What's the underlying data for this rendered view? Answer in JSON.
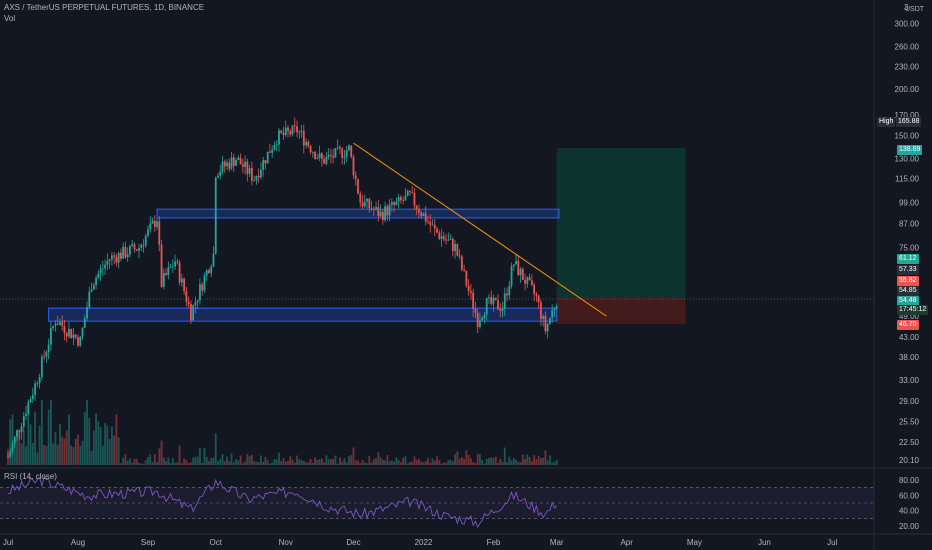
{
  "header": {
    "title": "AXS / TetherUS PERPETUAL FUTURES, 1D, BINANCE",
    "vol_label": "Vol",
    "rsi_label": "RSI (14, close)",
    "currency": "USDT",
    "top_scale_value": "3"
  },
  "price_axis": {
    "ticks": [
      "300.00",
      "260.00",
      "230.00",
      "200.00",
      "170.00",
      "150.00",
      "130.00",
      "115.00",
      "99.00",
      "87.00",
      "75.00",
      "65.00",
      "49.00",
      "43.00",
      "38.00",
      "33.00",
      "29.00",
      "25.50",
      "22.50",
      "20.10"
    ],
    "high_label": "High",
    "high_value": "165.88",
    "tags": [
      {
        "id": "target",
        "text": "138.69",
        "color": "#26a69a"
      },
      {
        "id": "t1",
        "text": "61.12",
        "color": "#26a69a"
      },
      {
        "id": "t2",
        "text": "57.33",
        "color": "#2a2e39"
      },
      {
        "id": "t3",
        "text": "55.82",
        "color": "#ef5350"
      },
      {
        "id": "t4",
        "text": "54.85",
        "color": "#2a2e39"
      },
      {
        "id": "last",
        "text": "54.48",
        "color": "#26a69a"
      },
      {
        "id": "countdown",
        "text": "17:45:12",
        "color": "#1e3a2f"
      },
      {
        "id": "stop",
        "text": "46.70",
        "color": "#ef5350"
      }
    ]
  },
  "rsi_axis": {
    "ticks": [
      "80.00",
      "60.00",
      "40.00",
      "20.00"
    ]
  },
  "time_axis": {
    "labels": [
      "Jul",
      "Aug",
      "Sep",
      "Oct",
      "Nov",
      "Dec",
      "2022",
      "Feb",
      "Mar",
      "Apr",
      "May",
      "Jun",
      "Jul"
    ]
  },
  "colors": {
    "up": "#26a69a",
    "down": "#ef5350",
    "zone": "#2962ff",
    "trendline": "#ff9800",
    "rsi": "#7e57c2",
    "profit_zone": "#0d3b33",
    "loss_zone": "#4a1c1c"
  },
  "chart_data": {
    "type": "candlestick",
    "symbol": "AXS / TetherUS PERPETUAL FUTURES",
    "interval": "1D",
    "exchange": "BINANCE",
    "y_scale": "log",
    "ylim": [
      19.5,
      330
    ],
    "period": [
      "2021-07-01",
      "2022-03-01"
    ],
    "price_path": [
      {
        "date": "2021-07-01",
        "close": 20.5
      },
      {
        "date": "2021-07-13",
        "close": 32
      },
      {
        "date": "2021-07-22",
        "close": 48
      },
      {
        "date": "2021-08-02",
        "close": 42
      },
      {
        "date": "2021-08-07",
        "close": 60
      },
      {
        "date": "2021-08-15",
        "close": 70
      },
      {
        "date": "2021-08-28",
        "close": 75
      },
      {
        "date": "2021-09-05",
        "close": 90
      },
      {
        "date": "2021-09-07",
        "close": 60
      },
      {
        "date": "2021-09-13",
        "close": 69
      },
      {
        "date": "2021-09-20",
        "close": 50
      },
      {
        "date": "2021-09-30",
        "close": 72
      },
      {
        "date": "2021-10-01",
        "close": 120
      },
      {
        "date": "2021-10-10",
        "close": 130
      },
      {
        "date": "2021-10-18",
        "close": 115
      },
      {
        "date": "2021-10-28",
        "close": 148
      },
      {
        "date": "2021-11-06",
        "close": 155
      },
      {
        "date": "2021-11-17",
        "close": 128
      },
      {
        "date": "2021-11-29",
        "close": 138
      },
      {
        "date": "2021-12-04",
        "close": 100
      },
      {
        "date": "2021-12-13",
        "close": 92
      },
      {
        "date": "2021-12-26",
        "close": 103
      },
      {
        "date": "2022-01-06",
        "close": 83
      },
      {
        "date": "2022-01-15",
        "close": 75
      },
      {
        "date": "2022-01-25",
        "close": 48
      },
      {
        "date": "2022-01-29",
        "close": 53
      },
      {
        "date": "2022-02-05",
        "close": 52
      },
      {
        "date": "2022-02-10",
        "close": 68
      },
      {
        "date": "2022-02-20",
        "close": 55
      },
      {
        "date": "2022-02-24",
        "close": 45
      },
      {
        "date": "2022-03-01",
        "close": 54.48
      }
    ],
    "zones": [
      {
        "name": "upper",
        "from": "2021-09-05",
        "to": "2022-03-02",
        "price_low": 90,
        "price_high": 95
      },
      {
        "name": "lower",
        "from": "2021-07-19",
        "to": "2022-03-01",
        "price_low": 47.5,
        "price_high": 51.5
      }
    ],
    "trendline": {
      "start_date": "2021-12-01",
      "start_price": 143,
      "end_date": "2022-03-23",
      "end_price": 49
    },
    "position": {
      "entry": 54.85,
      "target": 138.69,
      "stop": 46.7,
      "from": "2022-03-01",
      "to": "2022-04-27"
    },
    "last_price": 54.48,
    "high": 165.88,
    "rsi": {
      "period": 14,
      "source": "close",
      "levels": [
        70,
        50,
        30
      ],
      "ylim": [
        15,
        85
      ],
      "values": [
        {
          "date": "2021-07-01",
          "value": 65
        },
        {
          "date": "2021-07-15",
          "value": 80
        },
        {
          "date": "2021-08-05",
          "value": 60
        },
        {
          "date": "2021-09-05",
          "value": 65
        },
        {
          "date": "2021-09-20",
          "value": 42
        },
        {
          "date": "2021-10-01",
          "value": 78
        },
        {
          "date": "2021-10-15",
          "value": 55
        },
        {
          "date": "2021-11-05",
          "value": 66
        },
        {
          "date": "2021-11-20",
          "value": 45
        },
        {
          "date": "2021-12-05",
          "value": 35
        },
        {
          "date": "2021-12-26",
          "value": 52
        },
        {
          "date": "2022-01-10",
          "value": 34
        },
        {
          "date": "2022-01-25",
          "value": 25
        },
        {
          "date": "2022-02-10",
          "value": 60
        },
        {
          "date": "2022-02-24",
          "value": 36
        },
        {
          "date": "2022-03-01",
          "value": 52
        }
      ]
    }
  }
}
